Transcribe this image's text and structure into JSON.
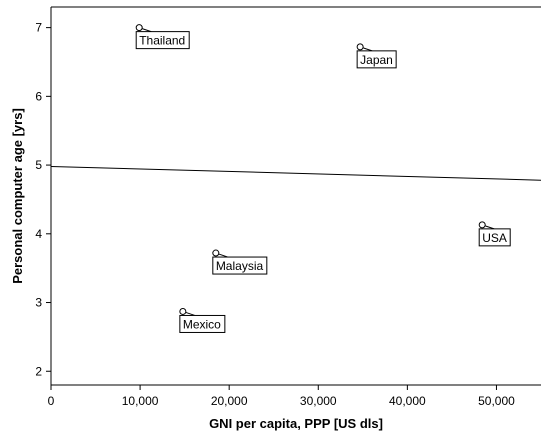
{
  "chart_data": {
    "type": "scatter",
    "title": "",
    "xlabel": "GNI per capita, PPP [US dls]",
    "ylabel": "Personal computer age [yrs]",
    "xlim": [
      0,
      55000
    ],
    "ylim": [
      1.8,
      7.3
    ],
    "x_ticks": [
      0,
      10000,
      20000,
      30000,
      40000,
      50000
    ],
    "x_tick_labels": [
      "0",
      "10,000",
      "20,000",
      "30,000",
      "40,000",
      "50,000"
    ],
    "y_ticks": [
      2,
      3,
      4,
      5,
      6,
      7
    ],
    "y_tick_labels": [
      "2",
      "3",
      "4",
      "5",
      "6",
      "7"
    ],
    "grid": false,
    "points": [
      {
        "label": "Thailand",
        "x": 9900,
        "y": 7.0
      },
      {
        "label": "Japan",
        "x": 34700,
        "y": 6.72
      },
      {
        "label": "Malaysia",
        "x": 18500,
        "y": 3.72
      },
      {
        "label": "Mexico",
        "x": 14800,
        "y": 2.87
      },
      {
        "label": "USA",
        "x": 48400,
        "y": 4.13
      }
    ],
    "fit_line": {
      "x": [
        0,
        55000
      ],
      "y": [
        4.98,
        4.78
      ]
    },
    "colors": {
      "marker_stroke": "#000000",
      "marker_fill": "#ffffff",
      "frame": "#000000",
      "fit_line": "#000000"
    }
  }
}
